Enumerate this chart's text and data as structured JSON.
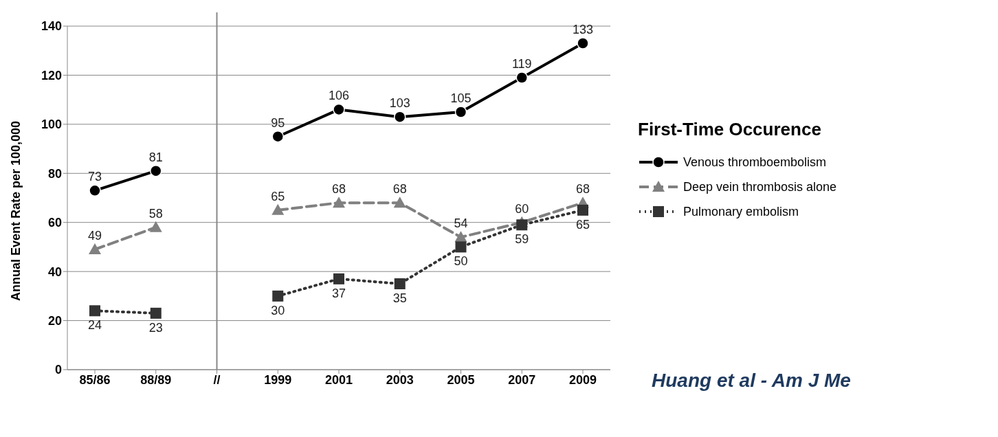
{
  "chart_data": {
    "type": "line",
    "ylabel": "Annual Event Rate per 100,000",
    "legend_title": "First-Time Occurence",
    "categories": [
      "85/86",
      "88/89",
      "//",
      "1999",
      "2001",
      "2003",
      "2005",
      "2007",
      "2009"
    ],
    "series": [
      {
        "name": "Venous thromboembolism",
        "color": "#000000",
        "marker": "circle",
        "line_style": "solid",
        "values": [
          73,
          81,
          null,
          95,
          106,
          103,
          105,
          119,
          133
        ]
      },
      {
        "name": "Deep vein thrombosis alone",
        "color": "#808080",
        "marker": "triangle",
        "line_style": "dashed",
        "values": [
          49,
          58,
          null,
          65,
          68,
          68,
          54,
          60,
          68
        ]
      },
      {
        "name": "Pulmonary embolism",
        "color": "#333333",
        "marker": "square",
        "line_style": "dotted",
        "values": [
          24,
          23,
          null,
          30,
          37,
          35,
          50,
          59,
          65
        ]
      }
    ],
    "ref_lines": [
      {
        "axis": "x",
        "value": "//",
        "color": "#888888"
      }
    ],
    "ylim": [
      0,
      140
    ],
    "yticks": [
      0,
      20,
      40,
      60,
      80,
      100,
      120,
      140
    ],
    "grid": "y",
    "legend": "right",
    "data_labels": true,
    "annotations": [
      "Huang et al - Am J Me"
    ]
  }
}
